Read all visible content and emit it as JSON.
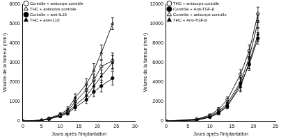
{
  "chart_data": [
    {
      "type": "line",
      "x_label": "Jours après l'implantation",
      "y_label": "Volume de la tumeur (mm³)",
      "x": [
        0,
        5,
        7,
        10,
        12,
        14,
        17,
        19,
        21,
        24
      ],
      "xlim": [
        0,
        30
      ],
      "xticks": [
        0,
        5,
        10,
        15,
        20,
        25,
        30
      ],
      "ylim": [
        0,
        6000
      ],
      "yticks": [
        0,
        1000,
        2000,
        3000,
        4000,
        5000,
        6000
      ],
      "grid": false,
      "legend": "upper left",
      "series": [
        {
          "name": "Contrôle + anticorps contrôle",
          "color": "#000000",
          "marker": "circle-open",
          "values": [
            0,
            40,
            120,
            300,
            500,
            1000,
            1600,
            2100,
            2800,
            3100
          ],
          "errors": [
            0,
            20,
            40,
            80,
            120,
            200,
            250,
            300,
            350,
            400
          ]
        },
        {
          "name": "THC + anticorps contrôle",
          "color": "#000000",
          "marker": "triangle-open",
          "values": [
            0,
            50,
            150,
            350,
            600,
            1200,
            1900,
            2600,
            3500,
            5000
          ],
          "errors": [
            0,
            20,
            50,
            90,
            130,
            200,
            280,
            350,
            400,
            300
          ]
        },
        {
          "name": "Contrôle + anti-IL10",
          "color": "#000000",
          "marker": "circle",
          "values": [
            0,
            30,
            100,
            250,
            400,
            700,
            1100,
            1500,
            1800,
            2200
          ],
          "errors": [
            0,
            20,
            40,
            70,
            100,
            150,
            200,
            250,
            300,
            350
          ]
        },
        {
          "name": "THC + anti-IL10",
          "color": "#000000",
          "marker": "triangle",
          "values": [
            0,
            40,
            120,
            280,
            450,
            800,
            1300,
            1800,
            2300,
            3000
          ],
          "errors": [
            0,
            20,
            40,
            70,
            100,
            150,
            220,
            280,
            320,
            380
          ]
        }
      ]
    },
    {
      "type": "line",
      "x_label": "Jours après l'implantation",
      "y_label": "Volume de la tumeur (mm³)",
      "x": [
        0,
        7,
        10,
        12,
        14,
        17,
        19,
        21
      ],
      "xlim": [
        0,
        25
      ],
      "xticks": [
        0,
        5,
        10,
        15,
        20,
        25
      ],
      "ylim": [
        0,
        12000
      ],
      "yticks": [
        0,
        2000,
        4000,
        6000,
        8000,
        10000,
        12000
      ],
      "grid": false,
      "legend": "upper left",
      "series": [
        {
          "name": "THC + anticorps contrôle",
          "color": "#000000",
          "marker": "circle-open",
          "values": [
            0,
            200,
            600,
            1200,
            2200,
            4800,
            7200,
            11000
          ],
          "errors": [
            0,
            50,
            100,
            200,
            300,
            500,
            600,
            700
          ]
        },
        {
          "name": "Contrôle + Anti-TGF-β",
          "color": "#000000",
          "marker": "circle",
          "values": [
            0,
            100,
            400,
            800,
            1500,
            3800,
            5800,
            8500
          ],
          "errors": [
            0,
            40,
            80,
            150,
            250,
            700,
            600,
            600
          ]
        },
        {
          "name": "Contrôle + anticorps contrôle",
          "color": "#000000",
          "marker": "triangle-open",
          "values": [
            0,
            150,
            500,
            1000,
            1800,
            4000,
            6500,
            10200
          ],
          "errors": [
            0,
            50,
            100,
            180,
            280,
            450,
            600,
            700
          ]
        },
        {
          "name": "THC + Anti-TGF-β",
          "color": "#000000",
          "marker": "triangle",
          "values": [
            0,
            100,
            400,
            900,
            1600,
            3500,
            6000,
            8900
          ],
          "errors": [
            0,
            40,
            80,
            150,
            250,
            500,
            600,
            700
          ]
        }
      ]
    }
  ]
}
